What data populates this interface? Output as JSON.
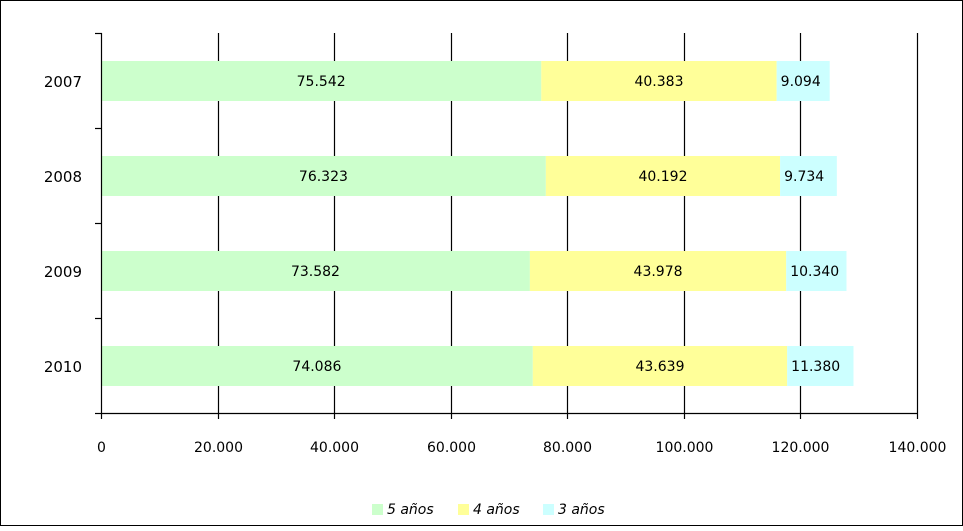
{
  "chart_data": {
    "type": "bar",
    "orientation": "horizontal",
    "stacked": true,
    "title": "",
    "xlabel": "",
    "ylabel": "",
    "categories": [
      "2007",
      "2008",
      "2009",
      "2010"
    ],
    "series": [
      {
        "name": "5 años",
        "values": [
          75542,
          76323,
          73582,
          74086
        ],
        "labels": [
          "75.542",
          "76.323",
          "73.582",
          "74.086"
        ],
        "color": "#ccffcc"
      },
      {
        "name": "4 años",
        "values": [
          40383,
          40192,
          43978,
          43639
        ],
        "labels": [
          "40.383",
          "40.192",
          "43.978",
          "43.639"
        ],
        "color": "#ffff99"
      },
      {
        "name": "3 años",
        "values": [
          9094,
          9734,
          10340,
          11380
        ],
        "labels": [
          "9.094",
          "9.734",
          "10.340",
          "11.380"
        ],
        "color": "#ccffff"
      }
    ],
    "xlim": [
      0,
      140000
    ],
    "xticks": [
      0,
      20000,
      40000,
      60000,
      80000,
      100000,
      120000,
      140000
    ],
    "xtick_labels": [
      "0",
      "20.000",
      "40.000",
      "60.000",
      "80.000",
      "100.000",
      "120.000",
      "140.000"
    ],
    "grid": "vertical",
    "legend": "bottom"
  }
}
